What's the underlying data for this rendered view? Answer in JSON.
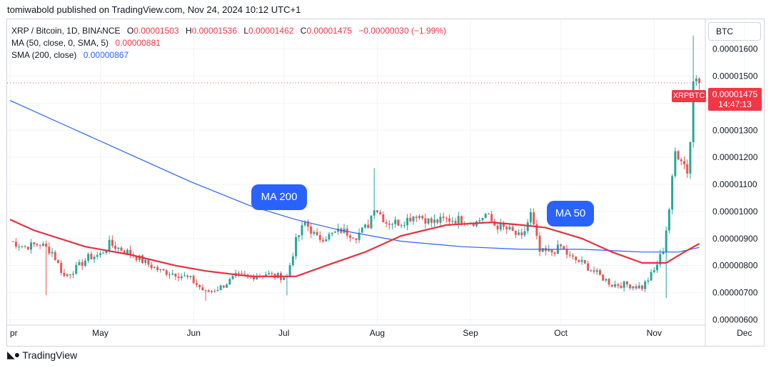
{
  "publisher_line": "tomiwabold published on TradingView.com, Nov 24, 2024 10:12 UTC+1",
  "legend": {
    "symbol": "XRP / Bitcoin, 1D, BINANCE",
    "o_label": "O",
    "o_value": "0.00001503",
    "h_label": "H",
    "h_value": "0.00001536",
    "l_label": "L",
    "l_value": "0.00001462",
    "c_label": "C",
    "c_value": "0.00001475",
    "change": "−0.00000030 (−1.99%)",
    "ma_label": "MA (50, close, 0, SMA, 5)",
    "ma_value": "0.00000881",
    "sma_label": "SMA (200, close)",
    "sma_value": "0.00000867"
  },
  "currency_button": "BTC",
  "price_tag": {
    "ticker": "XRPBTC",
    "price": "0.00001475",
    "countdown": "14:47:13"
  },
  "annotations": {
    "ma200": "MA 200",
    "ma50": "MA 50"
  },
  "brand": "TradingView",
  "colors": {
    "up": "#26a69a",
    "down": "#ef5350",
    "ma50": "#e8303d",
    "sma200": "#2962ff",
    "accent": "#2962ff"
  },
  "chart_data": {
    "type": "candlestick",
    "ylim": [
      5.8e-06,
      1.71e-05
    ],
    "y_ticks": [
      "0.00001600",
      "0.00001500",
      "0.00001400",
      "0.00001300",
      "0.00001200",
      "0.00001100",
      "0.00001000",
      "0.00000900",
      "0.00000800",
      "0.00000700",
      "0.00000600"
    ],
    "x_labels": [
      "pr",
      "May",
      "Jun",
      "Jul",
      "Aug",
      "Sep",
      "Oct",
      "Nov",
      "Dec"
    ],
    "last_price": 1.475e-05,
    "anchor_closes": [
      [
        0,
        8.9e-06
      ],
      [
        5,
        8.7e-06
      ],
      [
        10,
        8.8e-06
      ],
      [
        14,
        8.5e-06
      ],
      [
        18,
        7.6e-06
      ],
      [
        22,
        7.9e-06
      ],
      [
        26,
        8.3e-06
      ],
      [
        30,
        8.4e-06
      ],
      [
        33,
        8.8e-06
      ],
      [
        37,
        8.6e-06
      ],
      [
        41,
        8.4e-06
      ],
      [
        45,
        8.1e-06
      ],
      [
        50,
        7.8e-06
      ],
      [
        55,
        7.7e-06
      ],
      [
        60,
        7.5e-06
      ],
      [
        65,
        7e-06
      ],
      [
        70,
        7.2e-06
      ],
      [
        75,
        7.6e-06
      ],
      [
        80,
        7.6e-06
      ],
      [
        85,
        7.7e-06
      ],
      [
        88,
        7.6e-06
      ],
      [
        92,
        7.6e-06
      ],
      [
        95,
        8.9e-06
      ],
      [
        98,
        9.6e-06
      ],
      [
        102,
        9e-06
      ],
      [
        106,
        9.1e-06
      ],
      [
        110,
        9.3e-06
      ],
      [
        115,
        9.1e-06
      ],
      [
        119,
        9.5e-06
      ],
      [
        121,
        1.02e-05
      ],
      [
        125,
        9.6e-06
      ],
      [
        130,
        9.6e-06
      ],
      [
        135,
        9.9e-06
      ],
      [
        140,
        9.6e-06
      ],
      [
        145,
        9.7e-06
      ],
      [
        150,
        9.7e-06
      ],
      [
        155,
        9.6e-06
      ],
      [
        158,
        9.9e-06
      ],
      [
        161,
        9.5e-06
      ],
      [
        166,
        9.3e-06
      ],
      [
        170,
        9e-06
      ],
      [
        173,
        9.9e-06
      ],
      [
        176,
        8.5e-06
      ],
      [
        180,
        8.5e-06
      ],
      [
        183,
        8.7e-06
      ],
      [
        186,
        8.3e-06
      ],
      [
        190,
        8.1e-06
      ],
      [
        195,
        7.7e-06
      ],
      [
        200,
        7.3e-06
      ],
      [
        205,
        7.3e-06
      ],
      [
        210,
        7.2e-06
      ],
      [
        214,
        7.8e-06
      ],
      [
        217,
        8.6e-06
      ],
      [
        219,
        1.01e-05
      ],
      [
        221,
        1.22e-05
      ],
      [
        223,
        1.2e-05
      ],
      [
        225,
        1.15e-05
      ],
      [
        226,
        1.26e-05
      ],
      [
        227,
        1.48e-05
      ],
      [
        228,
        1.5e-05
      ],
      [
        229,
        1.475e-05
      ]
    ],
    "wick_spikes": [
      [
        121,
        1.16e-05
      ],
      [
        227,
        1.65e-05
      ],
      [
        12,
        6.9e-06
      ],
      [
        92,
        6.9e-06
      ],
      [
        65,
        6.7e-06
      ],
      [
        218,
        6.8e-06
      ]
    ],
    "ma50": [
      [
        0,
        9.7e-06
      ],
      [
        8,
        9.3e-06
      ],
      [
        25,
        8.7e-06
      ],
      [
        40,
        8.4e-06
      ],
      [
        55,
        8e-06
      ],
      [
        65,
        7.8e-06
      ],
      [
        80,
        7.6e-06
      ],
      [
        95,
        7.6e-06
      ],
      [
        105,
        8e-06
      ],
      [
        118,
        8.5e-06
      ],
      [
        130,
        9.1e-06
      ],
      [
        145,
        9.5e-06
      ],
      [
        160,
        9.6e-06
      ],
      [
        170,
        9.5e-06
      ],
      [
        178,
        9.4e-06
      ],
      [
        190,
        9e-06
      ],
      [
        200,
        8.5e-06
      ],
      [
        210,
        8.1e-06
      ],
      [
        218,
        8.1e-06
      ],
      [
        224,
        8.5e-06
      ],
      [
        229,
        8.81e-06
      ]
    ],
    "sma200": [
      [
        0,
        1.41e-05
      ],
      [
        20,
        1.31e-05
      ],
      [
        40,
        1.21e-05
      ],
      [
        60,
        1.11e-05
      ],
      [
        80,
        1.02e-05
      ],
      [
        95,
        9.7e-06
      ],
      [
        110,
        9.3e-06
      ],
      [
        130,
        8.9e-06
      ],
      [
        150,
        8.7e-06
      ],
      [
        170,
        8.6e-06
      ],
      [
        190,
        8.6e-06
      ],
      [
        210,
        8.5e-06
      ],
      [
        222,
        8.5e-06
      ],
      [
        229,
        8.67e-06
      ]
    ]
  }
}
